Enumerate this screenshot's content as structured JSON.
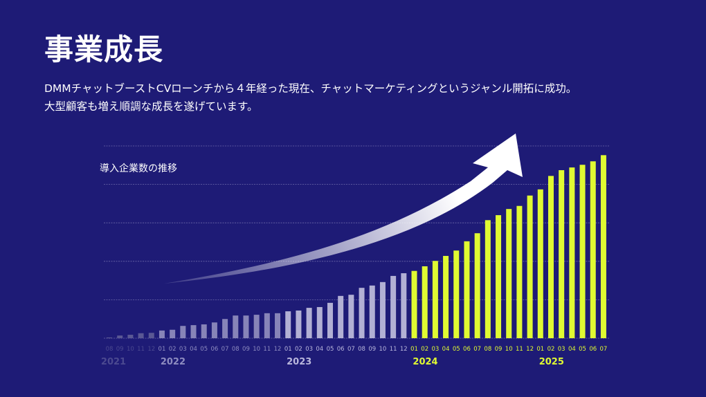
{
  "header": {
    "title": "事業成長",
    "description_lines": [
      "DMMチャットブーストCVローンチから４年経った現在、チャットマーケティングというジャンル開拓に成功。",
      "大型顧客も増え順調な成長を遂げています。"
    ]
  },
  "colors": {
    "background": "#1e1b76",
    "bar_2021": "#5a5894",
    "bar_2022": "#8784b8",
    "bar_2023": "#b2b0d4",
    "bar_highlight": "#e0fa32",
    "label_dim": "#4b4990",
    "label_2022": "#8e8cc0",
    "label_2023": "#b9b7dc",
    "label_highlight": "#e0fa32",
    "grid": "#8e8cc0",
    "arrow": "#ffffff"
  },
  "chart_data": {
    "type": "bar",
    "title": "導入企業数の推移",
    "xlabel": "",
    "ylabel": "",
    "ylim": [
      0,
      5
    ],
    "grid": true,
    "y_gridlines": [
      1,
      2,
      3,
      4,
      5
    ],
    "y_tick_labels_shown": false,
    "annotation": "upward growth arrow",
    "years": [
      {
        "label": "2021",
        "months": [
          "08",
          "09",
          "10",
          "11",
          "12"
        ],
        "values": [
          0.02,
          0.07,
          0.09,
          0.13,
          0.14
        ],
        "style": "dim"
      },
      {
        "label": "2022",
        "months": [
          "01",
          "02",
          "03",
          "04",
          "05",
          "06",
          "07",
          "08",
          "09",
          "10",
          "11",
          "12"
        ],
        "values": [
          0.2,
          0.22,
          0.32,
          0.34,
          0.36,
          0.41,
          0.5,
          0.59,
          0.59,
          0.61,
          0.65,
          0.65
        ],
        "style": "mid"
      },
      {
        "label": "2023",
        "months": [
          "01",
          "02",
          "03",
          "04",
          "05",
          "06",
          "07",
          "08",
          "09",
          "10",
          "11",
          "12"
        ],
        "values": [
          0.7,
          0.72,
          0.79,
          0.81,
          0.92,
          1.1,
          1.13,
          1.31,
          1.37,
          1.46,
          1.62,
          1.69
        ],
        "style": "light"
      },
      {
        "label": "2024",
        "months": [
          "01",
          "02",
          "03",
          "04",
          "05",
          "06",
          "07",
          "08",
          "09",
          "10",
          "11",
          "12"
        ],
        "values": [
          1.75,
          1.87,
          2.01,
          2.14,
          2.28,
          2.52,
          2.73,
          3.07,
          3.2,
          3.36,
          3.44,
          3.71
        ],
        "style": "highlight"
      },
      {
        "label": "2025",
        "months": [
          "01",
          "02",
          "03",
          "04",
          "05",
          "06",
          "07"
        ],
        "values": [
          3.87,
          4.22,
          4.37,
          4.44,
          4.51,
          4.6,
          4.76
        ],
        "style": "highlight"
      }
    ]
  }
}
